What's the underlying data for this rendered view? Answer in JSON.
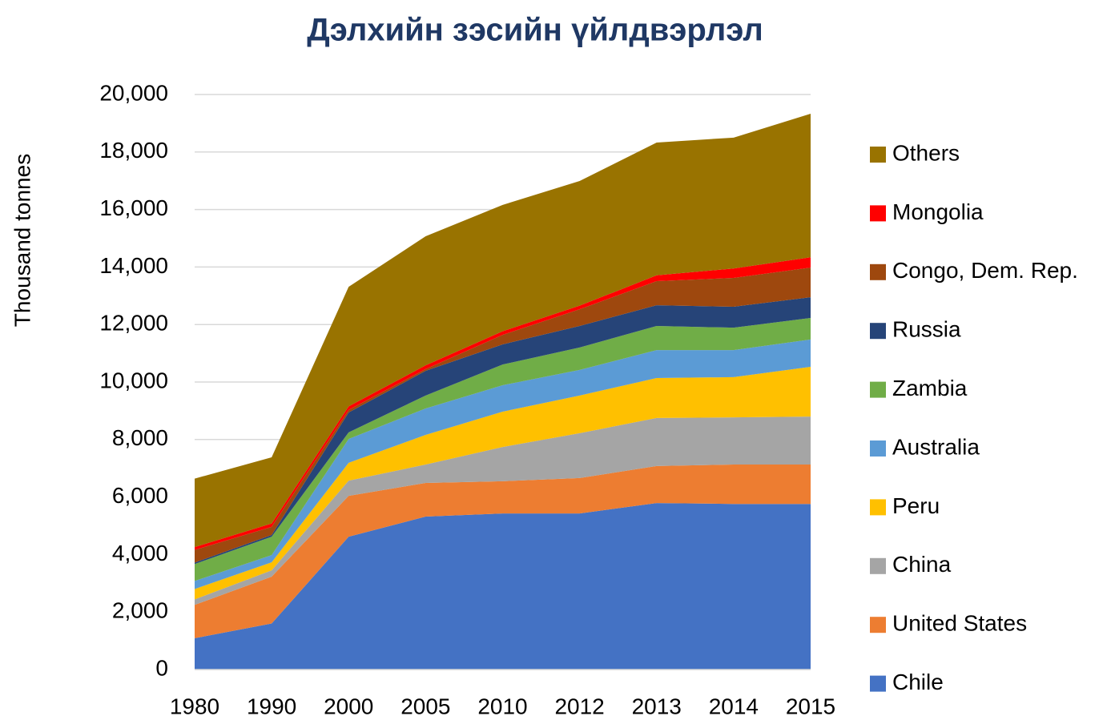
{
  "chart_data": {
    "type": "stacked_area",
    "title": "Дэлхийн зэсийн үйлдвэрлэл",
    "y_label": "Thousand tonnes",
    "categories": [
      "1980",
      "1990",
      "2000",
      "2005",
      "2010",
      "2012",
      "2013",
      "2014",
      "2015"
    ],
    "series": [
      {
        "name": "Chile",
        "color": "#4472c4",
        "values": [
          1090,
          1600,
          4620,
          5320,
          5430,
          5430,
          5790,
          5760,
          5760
        ]
      },
      {
        "name": "United States",
        "color": "#ed7d31",
        "values": [
          1160,
          1630,
          1420,
          1170,
          1120,
          1230,
          1290,
          1370,
          1370
        ]
      },
      {
        "name": "China",
        "color": "#a5a5a5",
        "values": [
          190,
          220,
          530,
          640,
          1190,
          1560,
          1670,
          1640,
          1670
        ]
      },
      {
        "name": "Peru",
        "color": "#ffc000",
        "values": [
          360,
          280,
          620,
          1030,
          1230,
          1310,
          1390,
          1400,
          1730
        ]
      },
      {
        "name": "Australia",
        "color": "#5b9bd5",
        "values": [
          280,
          250,
          830,
          920,
          920,
          890,
          970,
          940,
          950
        ]
      },
      {
        "name": "Zambia",
        "color": "#70ad47",
        "values": [
          590,
          640,
          230,
          450,
          720,
          780,
          840,
          780,
          750
        ]
      },
      {
        "name": "Russia",
        "color": "#264478",
        "values": [
          50,
          60,
          690,
          860,
          700,
          750,
          720,
          730,
          720
        ]
      },
      {
        "name": "Congo, Dem. Rep.",
        "color": "#9e480e",
        "values": [
          440,
          280,
          90,
          60,
          330,
          580,
          840,
          1000,
          1030
        ]
      },
      {
        "name": "Mongolia",
        "color": "#ff0000",
        "values": [
          100,
          120,
          125,
          130,
          125,
          125,
          200,
          330,
          360
        ]
      },
      {
        "name": "Others",
        "color": "#997300",
        "values": [
          2380,
          2300,
          4155,
          4490,
          4395,
          4335,
          4620,
          4550,
          4990
        ]
      }
    ],
    "ylim": [
      0,
      20000
    ],
    "yticks": [
      0,
      {
        "value": 2000,
        "label": "2,000"
      },
      {
        "value": 4000,
        "label": "4,000"
      },
      {
        "value": 6000,
        "label": "6,000"
      },
      {
        "value": 8000,
        "label": "8,000"
      },
      {
        "value": 10000,
        "label": "10,000"
      },
      {
        "value": 12000,
        "label": "12,000"
      },
      {
        "value": 14000,
        "label": "14,000"
      },
      {
        "value": 16000,
        "label": "16,000"
      },
      {
        "value": 18000,
        "label": "18,000"
      },
      {
        "value": 20000,
        "label": "20,000"
      }
    ],
    "grid": true,
    "legend": "right"
  }
}
